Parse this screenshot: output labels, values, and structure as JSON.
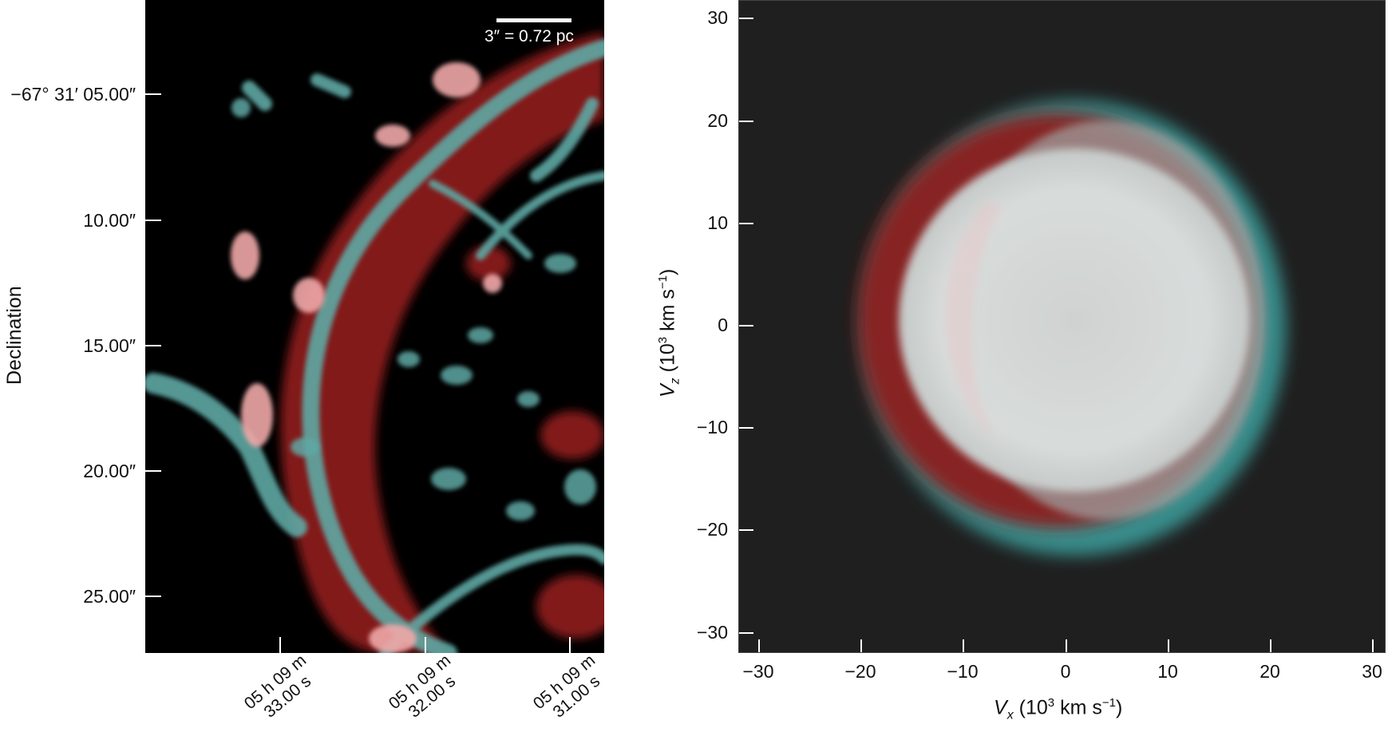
{
  "left_panel": {
    "scale_bar_text": "3″ = 0.72 pc",
    "dec_axis_title": "Declination",
    "dec_ticks": [
      "−67° 31′ 05.00″",
      "10.00″",
      "15.00″",
      "20.00″",
      "25.00″"
    ],
    "ra_ticks": [
      {
        "line1": "05 h 09 m",
        "line2": "33.00 s"
      },
      {
        "line1": "05 h 09 m",
        "line2": "32.00 s"
      },
      {
        "line1": "05 h 09 m",
        "line2": "31.00 s"
      }
    ],
    "colors": {
      "red_emission": "#8b1a1a",
      "cyan_emission": "#5fa8a4",
      "overlap": "#f0a8a8"
    }
  },
  "right_panel": {
    "x_ticks": [
      "−30",
      "−20",
      "−10",
      "0",
      "10",
      "20",
      "30"
    ],
    "y_ticks": [
      "30",
      "20",
      "10",
      "0",
      "−10",
      "−20",
      "−30"
    ],
    "x_axis_title": "V",
    "x_axis_sub": "x",
    "x_axis_rest": " (10",
    "x_axis_sup": "3",
    "x_axis_unit": " km s",
    "x_axis_unit_sup": "−1",
    "x_axis_close": ")",
    "y_axis_title": "V",
    "y_axis_sub": "z",
    "y_axis_rest": " (10",
    "y_axis_sup": "3",
    "y_axis_unit": " km s",
    "y_axis_unit_sup": "−1",
    "y_axis_close": ")",
    "colors": {
      "background": "#1f1f1f",
      "core": "#d8dcdb",
      "red_shell": "#8b2020",
      "cyan_shell": "#3a9a98"
    }
  }
}
